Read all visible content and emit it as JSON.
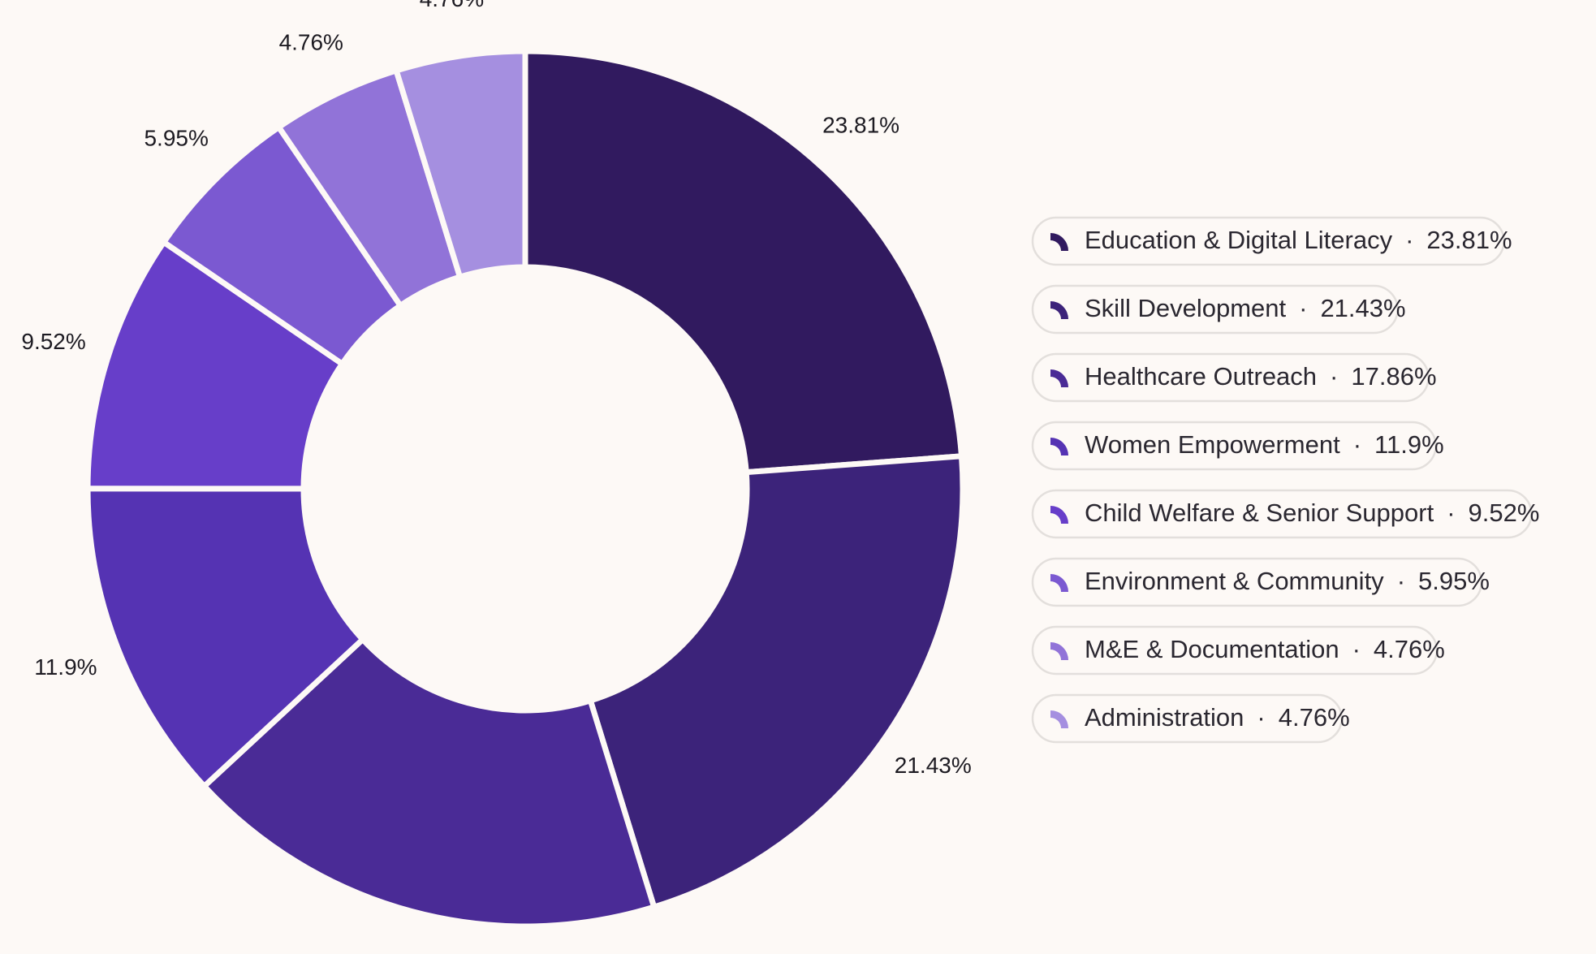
{
  "chart_data": {
    "type": "donut",
    "categories": [
      "Education & Digital Literacy",
      "Skill Development",
      "Healthcare Outreach",
      "Women Empowerment",
      "Child Welfare & Senior Support",
      "Environment & Community",
      "M&E & Documentation",
      "Administration"
    ],
    "values": [
      23.81,
      21.43,
      17.86,
      11.9,
      9.52,
      5.95,
      4.76,
      4.76
    ],
    "value_labels": [
      "23.81%",
      "21.43%",
      "17.86%",
      "11.9%",
      "9.52%",
      "5.95%",
      "4.76%",
      "4.76%"
    ],
    "colors": [
      "#311a5f",
      "#3c237a",
      "#4a2b96",
      "#5533b3",
      "#673ec9",
      "#7b59d1",
      "#9173d8",
      "#a58fe0"
    ],
    "legend": "right",
    "legend_separator": "·"
  }
}
